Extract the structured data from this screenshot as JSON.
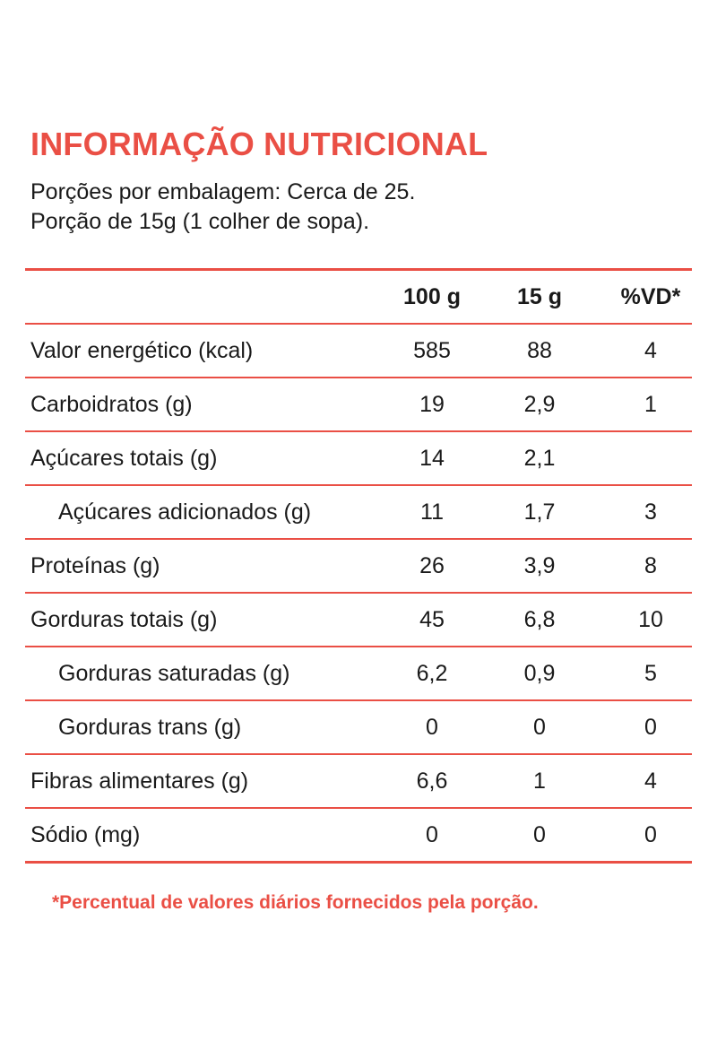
{
  "title": "INFORMAÇÃO NUTRICIONAL",
  "servings_per_package": "Porções por embalagem: Cerca de 25.",
  "serving_size": "Porção de 15g (1 colher de sopa).",
  "columns": [
    "100 g",
    "15 g",
    "%VD*"
  ],
  "rows": [
    {
      "label": "Valor energético (kcal)",
      "v100": "585",
      "v15": "88",
      "vd": "4",
      "indent": false
    },
    {
      "label": "Carboidratos (g)",
      "v100": "19",
      "v15": "2,9",
      "vd": "1",
      "indent": false
    },
    {
      "label": "Açúcares totais (g)",
      "v100": "14",
      "v15": "2,1",
      "vd": "",
      "indent": false
    },
    {
      "label": "Açúcares adicionados (g)",
      "v100": "11",
      "v15": "1,7",
      "vd": "3",
      "indent": true
    },
    {
      "label": "Proteínas (g)",
      "v100": "26",
      "v15": "3,9",
      "vd": "8",
      "indent": false
    },
    {
      "label": "Gorduras totais (g)",
      "v100": "45",
      "v15": "6,8",
      "vd": "10",
      "indent": false
    },
    {
      "label": "Gorduras saturadas (g)",
      "v100": "6,2",
      "v15": "0,9",
      "vd": "5",
      "indent": true
    },
    {
      "label": "Gorduras trans (g)",
      "v100": "0",
      "v15": "0",
      "vd": "0",
      "indent": true
    },
    {
      "label": "Fibras alimentares (g)",
      "v100": "6,6",
      "v15": "1",
      "vd": "4",
      "indent": false
    },
    {
      "label": "Sódio (mg)",
      "v100": "0",
      "v15": "0",
      "vd": "0",
      "indent": false
    }
  ],
  "footnote": "*Percentual de valores diários fornecidos pela porção.",
  "colors": {
    "accent": "#ea4f45",
    "text": "#1a1a1a"
  }
}
